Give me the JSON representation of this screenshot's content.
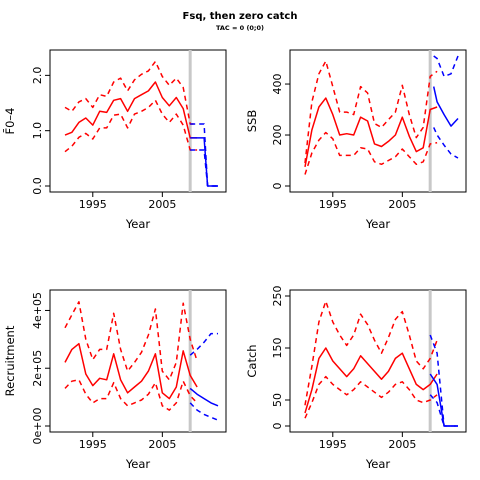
{
  "title": "Fsq, then zero catch",
  "subtitle": "TAC = 0 (0;0)",
  "colors": {
    "history": "#ff0000",
    "projection": "#0000ff",
    "divider": "#c8c8c8",
    "axis": "#000000"
  },
  "chart_data": [
    {
      "type": "line",
      "ylabel": "F̄0–4",
      "xlabel": "Year",
      "xlim": [
        1990,
        2013
      ],
      "ylim": [
        0,
        2.35
      ],
      "xticks": [
        1995,
        2005
      ],
      "yticks": [
        0.0,
        1.0,
        2.0
      ],
      "ytick_labels": [
        "0.0",
        "1.0",
        "2.0"
      ],
      "divider_x": 2009,
      "history": {
        "x": [
          1991,
          1992,
          1993,
          1994,
          1995,
          1996,
          1997,
          1998,
          1999,
          2000,
          2001,
          2002,
          2003,
          2004,
          2005,
          2006,
          2007,
          2008,
          2009,
          2010
        ],
        "median": [
          0.92,
          0.97,
          1.15,
          1.23,
          1.1,
          1.35,
          1.33,
          1.55,
          1.58,
          1.35,
          1.58,
          1.65,
          1.72,
          1.88,
          1.6,
          1.45,
          1.6,
          1.4,
          0.87,
          0.87
        ],
        "lower": [
          0.62,
          0.72,
          0.88,
          0.95,
          0.85,
          1.05,
          1.05,
          1.28,
          1.3,
          1.05,
          1.3,
          1.35,
          1.42,
          1.55,
          1.3,
          1.15,
          1.3,
          1.1,
          0.65,
          0.65
        ],
        "upper": [
          1.42,
          1.35,
          1.52,
          1.58,
          1.42,
          1.65,
          1.62,
          1.88,
          1.95,
          1.72,
          1.92,
          2.02,
          2.08,
          2.25,
          1.98,
          1.82,
          1.95,
          1.78,
          1.12,
          1.12
        ]
      },
      "projection": {
        "x": [
          2009,
          2010,
          2011,
          2011.5,
          2012,
          2013
        ],
        "median": [
          0.87,
          0.87,
          0.87,
          0.0,
          0.0,
          0.0
        ],
        "lower": [
          0.65,
          0.65,
          0.65,
          0.0,
          0.0,
          0.0
        ],
        "upper": [
          1.12,
          1.12,
          1.12,
          0.0,
          0.0,
          0.0
        ]
      }
    },
    {
      "type": "line",
      "ylabel": "SSB",
      "xlabel": "Year",
      "xlim": [
        1990,
        2013
      ],
      "ylim": [
        0,
        510
      ],
      "xticks": [
        1995,
        2005
      ],
      "yticks": [
        0,
        200,
        400
      ],
      "ytick_labels": [
        "0",
        "200",
        "400"
      ],
      "divider_x": 2009,
      "history": {
        "x": [
          1991,
          1992,
          1993,
          1994,
          1995,
          1996,
          1997,
          1998,
          1999,
          2000,
          2001,
          2002,
          2003,
          2004,
          2005,
          2006,
          2007,
          2008,
          2009,
          2010
        ],
        "median": [
          75,
          220,
          310,
          345,
          280,
          200,
          205,
          200,
          270,
          255,
          165,
          155,
          175,
          200,
          270,
          195,
          135,
          150,
          300,
          310
        ],
        "lower": [
          45,
          130,
          180,
          210,
          185,
          120,
          120,
          120,
          150,
          145,
          95,
          85,
          100,
          115,
          145,
          115,
          85,
          95,
          165,
          170
        ],
        "upper": [
          90,
          330,
          440,
          490,
          390,
          290,
          290,
          280,
          390,
          365,
          245,
          230,
          260,
          290,
          395,
          280,
          190,
          230,
          430,
          450
        ]
      },
      "projection": {
        "x": [
          2009.5,
          2010,
          2011,
          2012,
          2013
        ],
        "median": [
          390,
          330,
          280,
          235,
          265
        ],
        "lower": [
          230,
          200,
          160,
          125,
          110
        ],
        "upper": [
          510,
          500,
          430,
          440,
          510
        ]
      }
    },
    {
      "type": "line",
      "ylabel": "Recruitment",
      "xlabel": "Year",
      "xlim": [
        1990,
        2013
      ],
      "ylim": [
        0,
        450000
      ],
      "xticks": [
        1995,
        2005
      ],
      "yticks": [
        0,
        200000,
        400000
      ],
      "ytick_labels": [
        "0e+00",
        "2e+05",
        "4e+05"
      ],
      "divider_x": 2009,
      "history": {
        "x": [
          1991,
          1992,
          1993,
          1994,
          1995,
          1996,
          1997,
          1998,
          1999,
          2000,
          2001,
          2002,
          2003,
          2004,
          2005,
          2006,
          2007,
          2008,
          2009,
          2010
        ],
        "median": [
          220000,
          265000,
          285000,
          180000,
          140000,
          165000,
          160000,
          250000,
          160000,
          115000,
          135000,
          155000,
          190000,
          250000,
          115000,
          95000,
          135000,
          260000,
          175000,
          135000
        ],
        "lower": [
          130000,
          155000,
          160000,
          110000,
          80000,
          95000,
          95000,
          150000,
          95000,
          70000,
          80000,
          90000,
          110000,
          150000,
          70000,
          55000,
          80000,
          155000,
          105000,
          80000
        ],
        "upper": [
          340000,
          385000,
          430000,
          300000,
          230000,
          265000,
          265000,
          390000,
          265000,
          190000,
          220000,
          255000,
          315000,
          405000,
          190000,
          160000,
          220000,
          425000,
          300000,
          225000
        ]
      },
      "projection": {
        "x": [
          2009,
          2010,
          2011,
          2012,
          2013
        ],
        "median": [
          130000,
          110000,
          95000,
          80000,
          70000
        ],
        "lower": [
          80000,
          55000,
          40000,
          30000,
          20000
        ],
        "upper": [
          245000,
          265000,
          290000,
          320000,
          320000
        ]
      }
    },
    {
      "type": "line",
      "ylabel": "Catch",
      "xlabel": "Year",
      "xlim": [
        1990,
        2013
      ],
      "ylim": [
        0,
        250
      ],
      "xticks": [
        1995,
        2005
      ],
      "yticks": [
        0,
        50,
        150,
        250
      ],
      "ytick_labels": [
        "0",
        "50",
        "150",
        "250"
      ],
      "divider_x": 2009,
      "history": {
        "x": [
          1991,
          1992,
          1993,
          1994,
          1995,
          1996,
          1997,
          1998,
          1999,
          2000,
          2001,
          2002,
          2003,
          2004,
          2005,
          2006,
          2007,
          2008,
          2009,
          2010
        ],
        "median": [
          25,
          70,
          130,
          150,
          125,
          110,
          95,
          110,
          135,
          120,
          105,
          90,
          105,
          130,
          140,
          110,
          80,
          70,
          80,
          100
        ],
        "lower": [
          15,
          45,
          80,
          95,
          80,
          70,
          60,
          70,
          85,
          75,
          65,
          55,
          65,
          80,
          85,
          70,
          50,
          45,
          50,
          60
        ],
        "upper": [
          40,
          115,
          200,
          240,
          200,
          175,
          155,
          175,
          215,
          195,
          165,
          140,
          170,
          205,
          220,
          175,
          125,
          110,
          130,
          165
        ]
      },
      "projection": {
        "x": [
          2009,
          2010,
          2011,
          2012,
          2013
        ],
        "median": [
          100,
          80,
          0,
          0,
          0
        ],
        "lower": [
          60,
          45,
          0,
          0,
          0
        ],
        "upper": [
          175,
          140,
          0,
          0,
          0
        ]
      }
    }
  ]
}
